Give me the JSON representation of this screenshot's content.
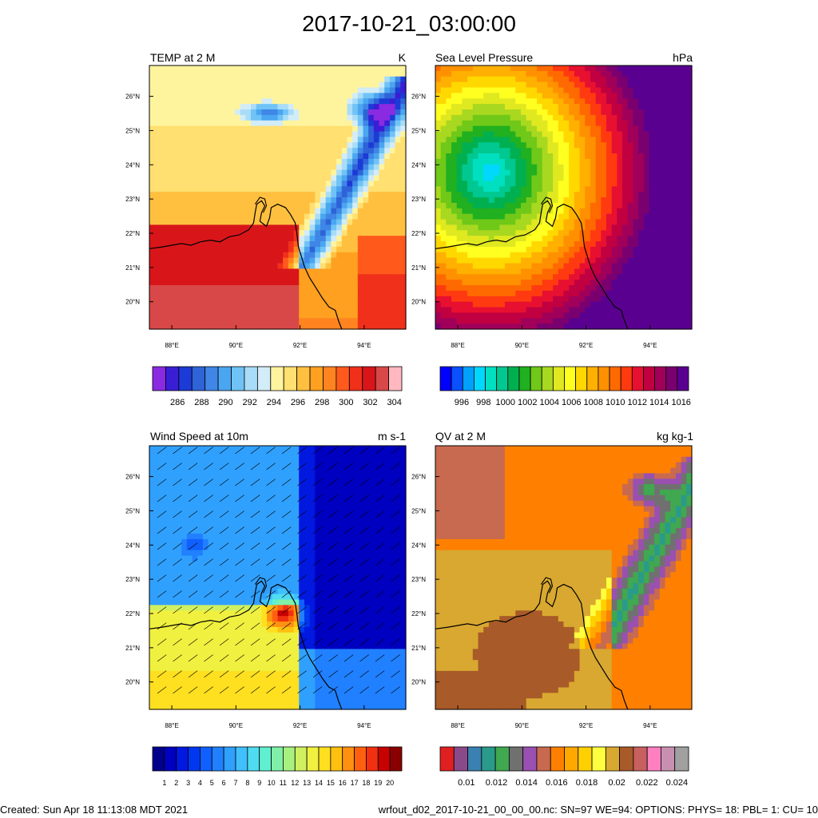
{
  "page": {
    "title": "2017-10-21_03:00:00",
    "footer_left": "Created: Sun Apr 18 11:13:08 MDT 2021",
    "footer_right": "wrfout_d02_2017-10-21_00_00_00.nc: SN=97 WE=94: OPTIONS: PHYS= 18: PBL= 1: CU= 10"
  },
  "chart_data": [
    {
      "type": "heatmap",
      "title": "TEMP at 2 M",
      "units": "K",
      "xlim": [
        87.3,
        95.3
      ],
      "ylim": [
        19.2,
        26.9
      ],
      "x_ticks": [
        "88°E",
        "90°E",
        "92°E",
        "94°E"
      ],
      "y_ticks": [
        "20°N",
        "21°N",
        "22°N",
        "23°N",
        "24°N",
        "25°N",
        "26°N"
      ],
      "colorbar": {
        "colors": [
          "#8a2be2",
          "#3a1ed6",
          "#1c3ad6",
          "#2f63d8",
          "#3f86e6",
          "#4aa6f0",
          "#6fc3f6",
          "#a9dcf8",
          "#d2ecf8",
          "#fff49e",
          "#ffe070",
          "#ffc040",
          "#ffa020",
          "#ff8420",
          "#ff5a1c",
          "#f0301a",
          "#d8161a",
          "#d84848",
          "#ffb8c0"
        ],
        "labels": [
          "286",
          "288",
          "290",
          "292",
          "294",
          "296",
          "298",
          "300",
          "302",
          "304"
        ]
      }
    },
    {
      "type": "heatmap",
      "title": "Sea Level Pressure",
      "units": "hPa",
      "xlim": [
        87.3,
        95.3
      ],
      "ylim": [
        19.2,
        26.9
      ],
      "x_ticks": [
        "88°E",
        "90°E",
        "92°E",
        "94°E"
      ],
      "y_ticks": [
        "20°N",
        "21°N",
        "22°N",
        "23°N",
        "24°N",
        "25°N",
        "26°N"
      ],
      "colorbar": {
        "colors": [
          "#0000ff",
          "#0a50ff",
          "#00a0ff",
          "#00d8ff",
          "#00e0c0",
          "#00c890",
          "#00b050",
          "#20b020",
          "#70c818",
          "#a8d820",
          "#e0e820",
          "#ffff20",
          "#ffd800",
          "#ffb000",
          "#ff9000",
          "#ff6a00",
          "#ff3a10",
          "#e81030",
          "#c00040",
          "#a0005a",
          "#7a0070",
          "#5a0090"
        ],
        "labels": [
          "996",
          "998",
          "1000",
          "1002",
          "1004",
          "1006",
          "1008",
          "1010",
          "1012",
          "1014",
          "1016"
        ]
      }
    },
    {
      "type": "heatmap",
      "title": "Wind Speed at 10m",
      "units": "m s-1",
      "xlim": [
        87.3,
        95.3
      ],
      "ylim": [
        19.2,
        26.9
      ],
      "x_ticks": [
        "88°E",
        "90°E",
        "92°E",
        "94°E"
      ],
      "y_ticks": [
        "20°N",
        "21°N",
        "22°N",
        "23°N",
        "24°N",
        "25°N",
        "26°N"
      ],
      "colorbar": {
        "colors": [
          "#00008c",
          "#0000c0",
          "#0018e0",
          "#0038f0",
          "#1060ff",
          "#2080ff",
          "#30a0ff",
          "#40c0ff",
          "#50dcf0",
          "#60f0d0",
          "#80f0a8",
          "#a8f080",
          "#d0f060",
          "#f0f040",
          "#ffe020",
          "#ffc010",
          "#ff9010",
          "#ff6010",
          "#f03010",
          "#c80000",
          "#8a0000"
        ],
        "labels": [
          "1",
          "2",
          "3",
          "4",
          "5",
          "6",
          "7",
          "8",
          "9",
          "10",
          "11",
          "12",
          "13",
          "14",
          "15",
          "16",
          "17",
          "18",
          "19",
          "20"
        ]
      }
    },
    {
      "type": "heatmap",
      "title": "QV at 2 M",
      "units": "kg kg-1",
      "xlim": [
        87.3,
        95.3
      ],
      "ylim": [
        19.2,
        26.9
      ],
      "x_ticks": [
        "88°E",
        "90°E",
        "92°E",
        "94°E"
      ],
      "y_ticks": [
        "20°N",
        "21°N",
        "22°N",
        "23°N",
        "24°N",
        "25°N",
        "26°N"
      ],
      "colorbar": {
        "colors": [
          "#e02020",
          "#8a4a8a",
          "#3a80b0",
          "#2a9a8a",
          "#40a850",
          "#707070",
          "#9a50b0",
          "#c86a50",
          "#ff8000",
          "#ffa800",
          "#ffd000",
          "#ffff40",
          "#d8a830",
          "#a85a28",
          "#c86060",
          "#ff80c0",
          "#c890b0",
          "#a0a0a0"
        ],
        "labels": [
          "0.01",
          "0.012",
          "0.014",
          "0.016",
          "0.018",
          "0.02",
          "0.022",
          "0.024"
        ]
      }
    }
  ]
}
